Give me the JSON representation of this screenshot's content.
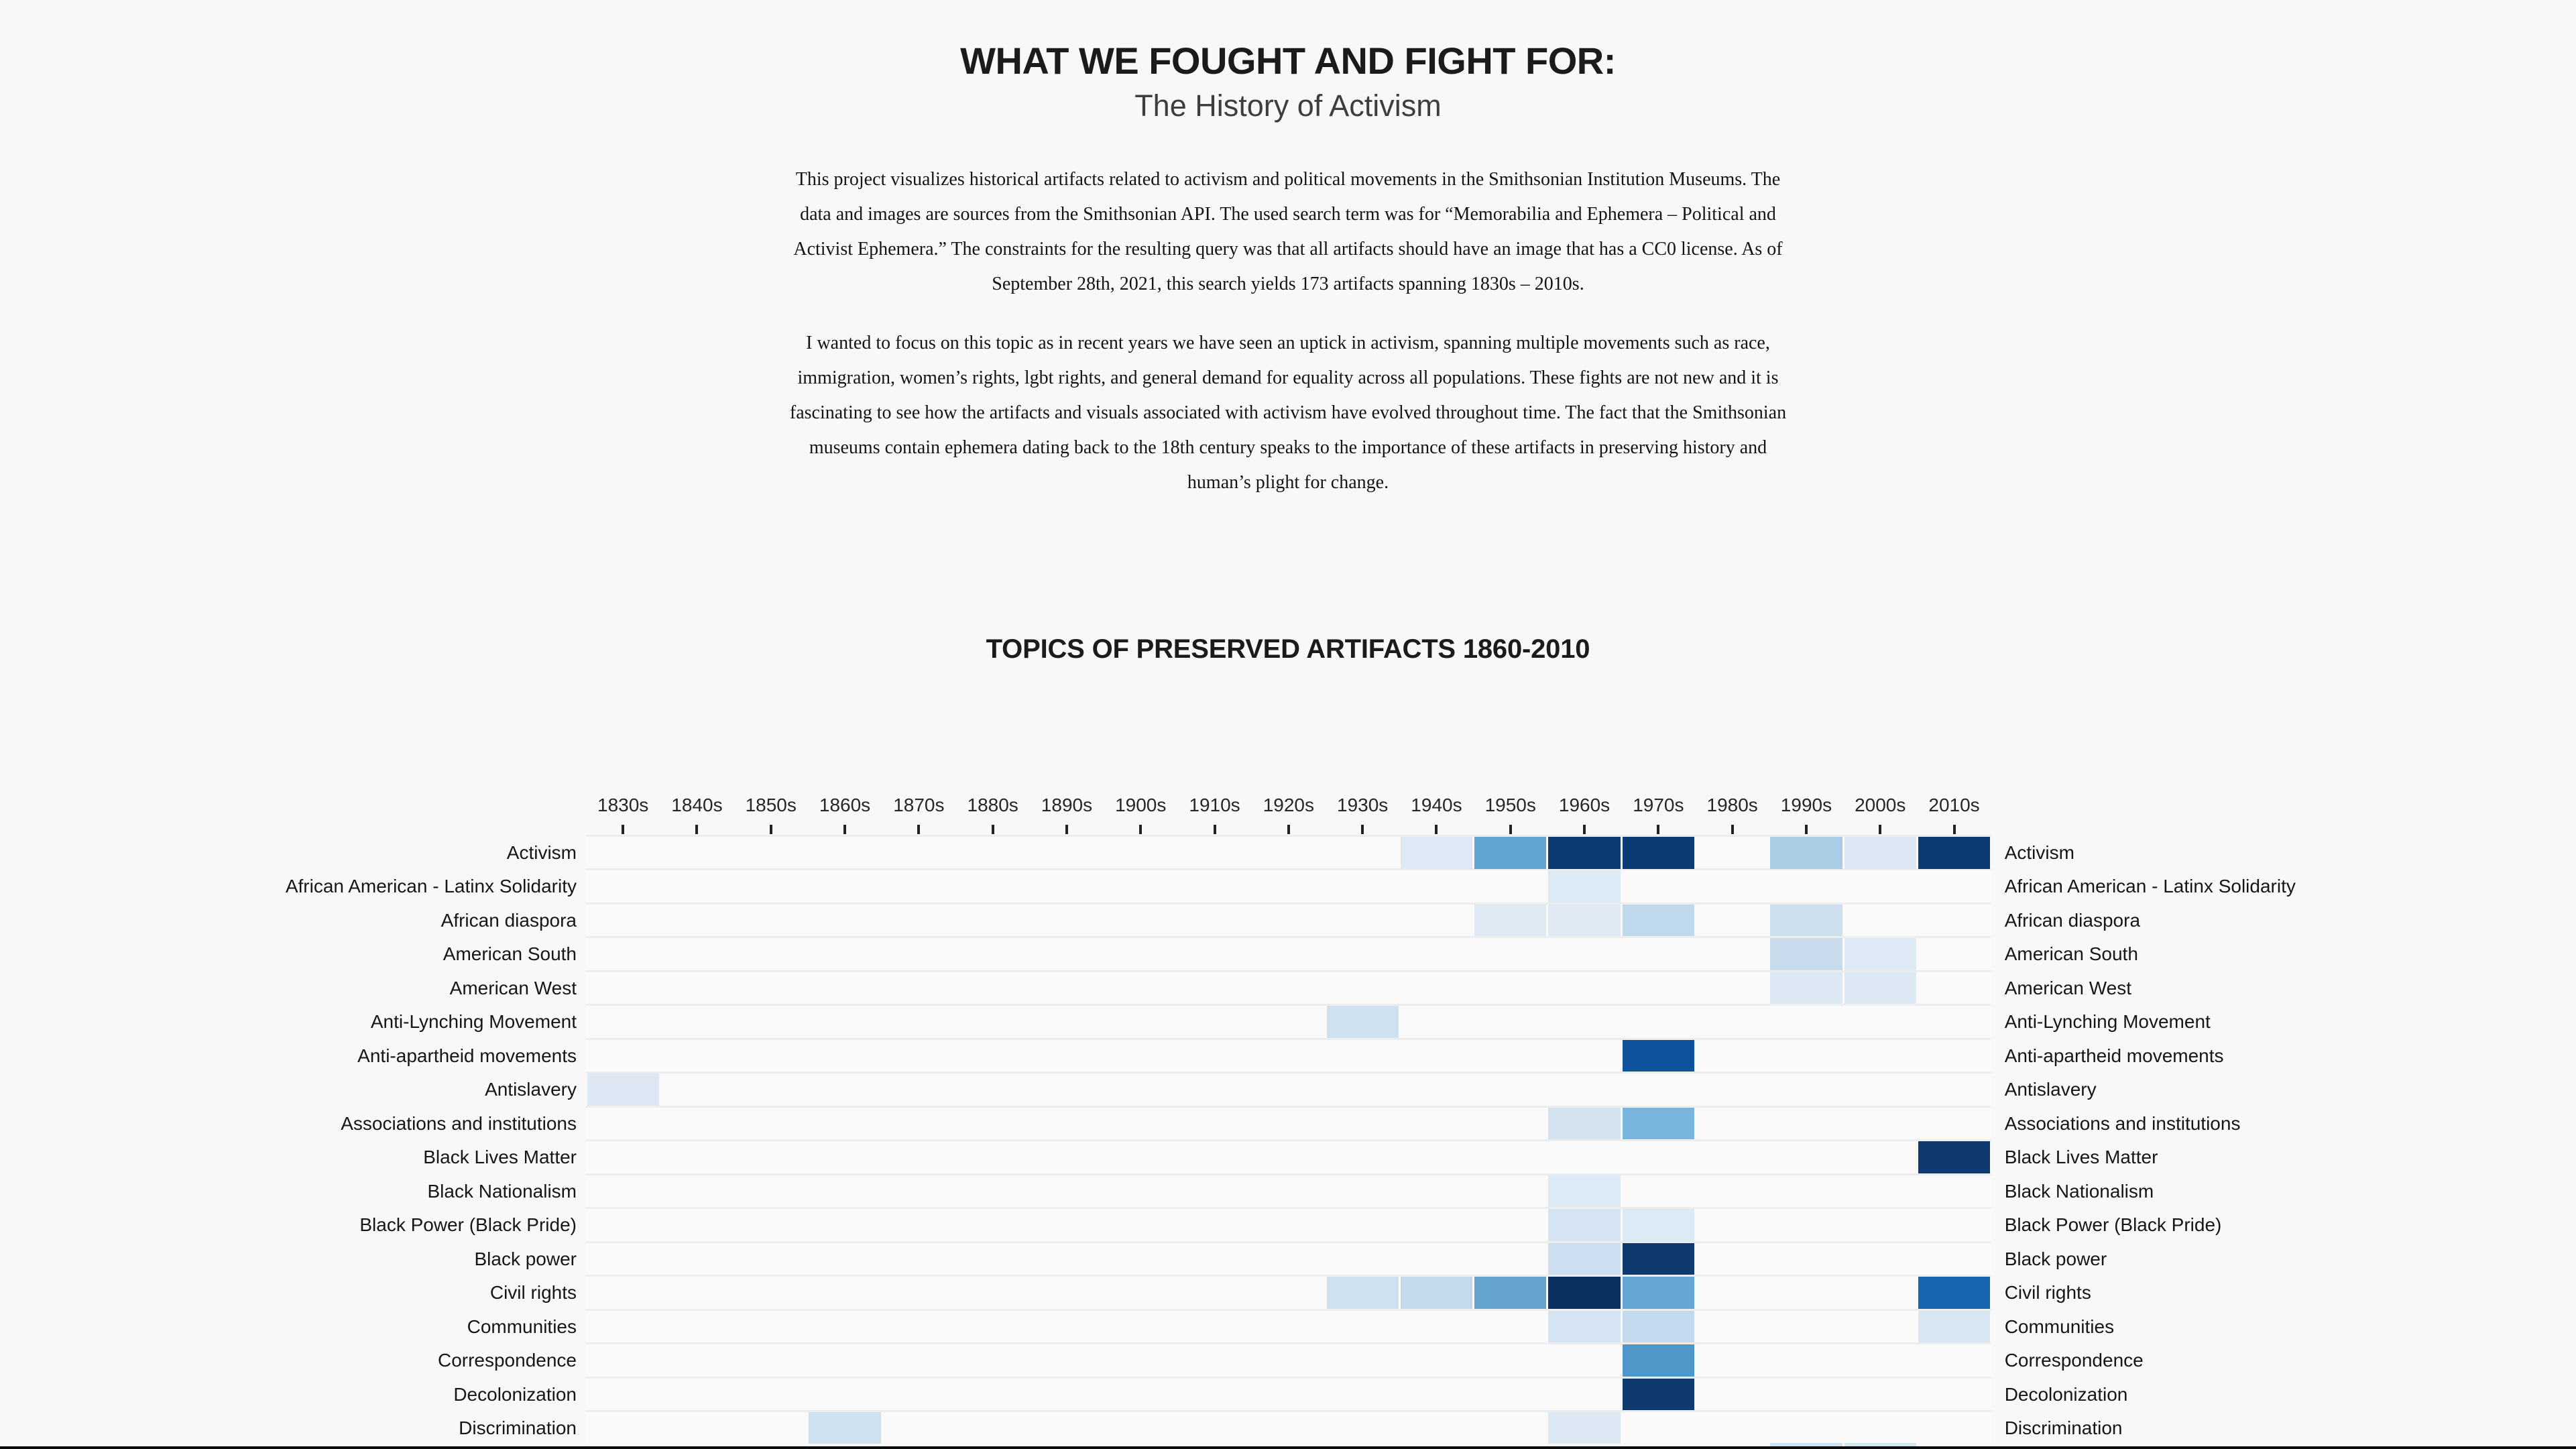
{
  "page": {
    "background": "#f8f8f8",
    "header": {
      "title": "WHAT WE FOUGHT AND FIGHT FOR:",
      "subtitle": "The History of Activism"
    },
    "intro_paragraphs": [
      "This project visualizes historical artifacts related to activism and political movements in the Smithsonian Institution Museums. The data and images are sources from the Smithsonian API. The used search term was for “Memorabilia and Ephemera – Political and Activist Ephemera.” The constraints for the resulting query was that all artifacts should have an image that has a CC0 license. As of September 28th, 2021, this search yields 173 artifacts spanning 1830s – 2010s.",
      "I wanted to focus on this topic as in recent years we have seen an uptick in activism, spanning multiple movements such as race, immigration, women’s rights, lgbt rights, and general demand for equality across all populations. These fights are not new and it is fascinating to see how the artifacts and visuals associated with activism have evolved throughout time. The fact that the Smithsonian museums contain ephemera dating back to the 18th century speaks to the importance of these artifacts in preserving history and human’s plight for change."
    ]
  },
  "chart_data": {
    "type": "heatmap",
    "title": "TOPICS OF PRESERVED ARTIFACTS 1860-2010",
    "columns": [
      "1830s",
      "1840s",
      "1850s",
      "1860s",
      "1870s",
      "1880s",
      "1890s",
      "1900s",
      "1910s",
      "1920s",
      "1930s",
      "1940s",
      "1950s",
      "1960s",
      "1970s",
      "1980s",
      "1990s",
      "2000s",
      "2010s"
    ],
    "rows": [
      "Activism",
      "African American - Latinx Solidarity",
      "African diaspora",
      "American South",
      "American West",
      "Anti-Lynching Movement",
      "Anti-apartheid movements",
      "Antislavery",
      "Associations and institutions",
      "Black Lives Matter",
      "Black Nationalism",
      "Black Power (Black Pride)",
      "Black power",
      "Civil rights",
      "Communities",
      "Correspondence",
      "Decolonization",
      "Discrimination"
    ],
    "legend_position": "none",
    "grid": "row separators only",
    "color_scale_note": "Blues sequential scale; level 1 = lightest / fewest artifacts, 9 = darkest / most artifacts. Values are intensity levels inferred from cell colour; exact counts are not printed in the chart.",
    "palette_reference": {
      "2": "#deebf7",
      "3": "#c6dbef",
      "4": "#9ecae1",
      "5": "#6baed6",
      "6": "#4292c6",
      "7": "#2171b5",
      "8": "#08519c",
      "9": "#08306b"
    },
    "cells": [
      {
        "row": "Activism",
        "col": "1940s",
        "level": 2,
        "color": "#dee9f5"
      },
      {
        "row": "Activism",
        "col": "1950s",
        "level": 5,
        "color": "#61a5d2"
      },
      {
        "row": "Activism",
        "col": "1960s",
        "level": 9,
        "color": "#0c3a72"
      },
      {
        "row": "Activism",
        "col": "1970s",
        "level": 9,
        "color": "#0c3a72"
      },
      {
        "row": "Activism",
        "col": "1990s",
        "level": 4,
        "color": "#a9cde5"
      },
      {
        "row": "Activism",
        "col": "2000s",
        "level": 2,
        "color": "#dbe7f3"
      },
      {
        "row": "Activism",
        "col": "2010s",
        "level": 9,
        "color": "#0c3a72"
      },
      {
        "row": "African American - Latinx Solidarity",
        "col": "1960s",
        "level": 2,
        "color": "#dceaf6"
      },
      {
        "row": "African diaspora",
        "col": "1950s",
        "level": 2,
        "color": "#dfeaf5"
      },
      {
        "row": "African diaspora",
        "col": "1960s",
        "level": 2,
        "color": "#dfeaf5"
      },
      {
        "row": "African diaspora",
        "col": "1970s",
        "level": 3,
        "color": "#bfd8ec"
      },
      {
        "row": "African diaspora",
        "col": "1990s",
        "level": 3,
        "color": "#cde0f0"
      },
      {
        "row": "American South",
        "col": "1990s",
        "level": 3,
        "color": "#c9dcee"
      },
      {
        "row": "American South",
        "col": "2000s",
        "level": 2,
        "color": "#dde9f5"
      },
      {
        "row": "American West",
        "col": "1990s",
        "level": 2,
        "color": "#dce8f4"
      },
      {
        "row": "American West",
        "col": "2000s",
        "level": 2,
        "color": "#dce8f4"
      },
      {
        "row": "Anti-Lynching Movement",
        "col": "1930s",
        "level": 3,
        "color": "#cfe1f0"
      },
      {
        "row": "Anti-apartheid movements",
        "col": "1970s",
        "level": 8,
        "color": "#0f529c"
      },
      {
        "row": "Antislavery",
        "col": "1830s",
        "level": 2,
        "color": "#dde8f4"
      },
      {
        "row": "Associations and institutions",
        "col": "1960s",
        "level": 3,
        "color": "#d5e3f1"
      },
      {
        "row": "Associations and institutions",
        "col": "1970s",
        "level": 5,
        "color": "#7ab5dc"
      },
      {
        "row": "Black Lives Matter",
        "col": "2010s",
        "level": 9,
        "color": "#0e3a70"
      },
      {
        "row": "Black Nationalism",
        "col": "1960s",
        "level": 2,
        "color": "#dceaf6"
      },
      {
        "row": "Black Power (Black Pride)",
        "col": "1960s",
        "level": 2,
        "color": "#d5e4f2"
      },
      {
        "row": "Black Power (Black Pride)",
        "col": "1970s",
        "level": 2,
        "color": "#dceaf6"
      },
      {
        "row": "Black power",
        "col": "1960s",
        "level": 3,
        "color": "#cddff0"
      },
      {
        "row": "Black power",
        "col": "1970s",
        "level": 9,
        "color": "#0e3a70"
      },
      {
        "row": "Civil rights",
        "col": "1930s",
        "level": 3,
        "color": "#cfe0f0"
      },
      {
        "row": "Civil rights",
        "col": "1940s",
        "level": 3,
        "color": "#c3daec"
      },
      {
        "row": "Civil rights",
        "col": "1950s",
        "level": 5,
        "color": "#63a3cd"
      },
      {
        "row": "Civil rights",
        "col": "1960s",
        "level": 9,
        "color": "#0a3160"
      },
      {
        "row": "Civil rights",
        "col": "1970s",
        "level": 5,
        "color": "#64a7d2"
      },
      {
        "row": "Civil rights",
        "col": "2010s",
        "level": 7,
        "color": "#1a65af"
      },
      {
        "row": "Communities",
        "col": "1960s",
        "level": 2,
        "color": "#d5e4f2"
      },
      {
        "row": "Communities",
        "col": "1970s",
        "level": 3,
        "color": "#c3d9ed"
      },
      {
        "row": "Communities",
        "col": "2010s",
        "level": 2,
        "color": "#d9e7f4"
      },
      {
        "row": "Correspondence",
        "col": "1970s",
        "level": 6,
        "color": "#4f97c8"
      },
      {
        "row": "Decolonization",
        "col": "1970s",
        "level": 9,
        "color": "#0e3a70"
      },
      {
        "row": "Discrimination",
        "col": "1860s",
        "level": 3,
        "color": "#cfe0f0"
      },
      {
        "row": "Discrimination",
        "col": "1960s",
        "level": 2,
        "color": "#dce9f5"
      }
    ],
    "cutoff_next_row_cells": [
      {
        "col": "1990s",
        "level": 3,
        "color": "#cfe2f2"
      },
      {
        "col": "2000s",
        "level": 2,
        "color": "#d5e6f3"
      }
    ]
  }
}
